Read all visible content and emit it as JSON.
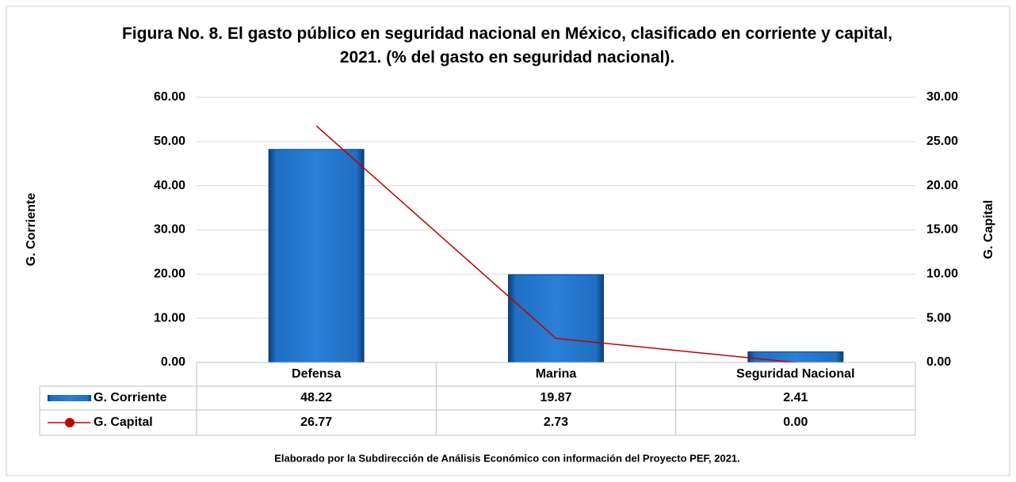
{
  "chart_data": {
    "type": "bar",
    "title": "Figura No. 8. El gasto público en seguridad nacional en México, clasificado en corriente y capital, 2021. (% del gasto en seguridad nacional).",
    "y_label": "G. Corriente",
    "y2_label": "G. Capital",
    "note": "Elaborado por la Subdirección de Análisis Económico con información del  Proyecto PEF, 2021.",
    "categories": [
      "Defensa",
      "Marina",
      "Seguridad Nacional"
    ],
    "series": [
      {
        "name": "G. Corriente",
        "type": "bar",
        "color": "#1f6fc4",
        "values": [
          48.22,
          19.87,
          2.41
        ],
        "value_labels": [
          "48.22",
          "19.87",
          "2.41"
        ]
      },
      {
        "name": "G. Capital",
        "type": "line",
        "color": "#c00000",
        "axis": "y2",
        "values": [
          26.77,
          2.73,
          0
        ],
        "value_labels": [
          "26.77",
          "2.73",
          "0.00"
        ]
      }
    ],
    "ylim": [
      0,
      60
    ],
    "yticks": [
      {
        "value": 0,
        "label": "0.00"
      },
      {
        "value": 10,
        "label": "10.00"
      },
      {
        "value": 20,
        "label": "20.00"
      },
      {
        "value": 30,
        "label": "30.00"
      },
      {
        "value": 40,
        "label": "40.00"
      },
      {
        "value": 50,
        "label": "50.00"
      },
      {
        "value": 60,
        "label": "60.00"
      }
    ],
    "y2lim": [
      0,
      30
    ],
    "y2ticks": [
      {
        "value": 0,
        "label": "0.00"
      },
      {
        "value": 5,
        "label": "5.00"
      },
      {
        "value": 10,
        "label": "10.00"
      },
      {
        "value": 15,
        "label": "15.00"
      },
      {
        "value": 20,
        "label": "20.00"
      },
      {
        "value": 25,
        "label": "25.00"
      },
      {
        "value": 30,
        "label": "30.00"
      }
    ],
    "grid": true,
    "data_table": true
  }
}
